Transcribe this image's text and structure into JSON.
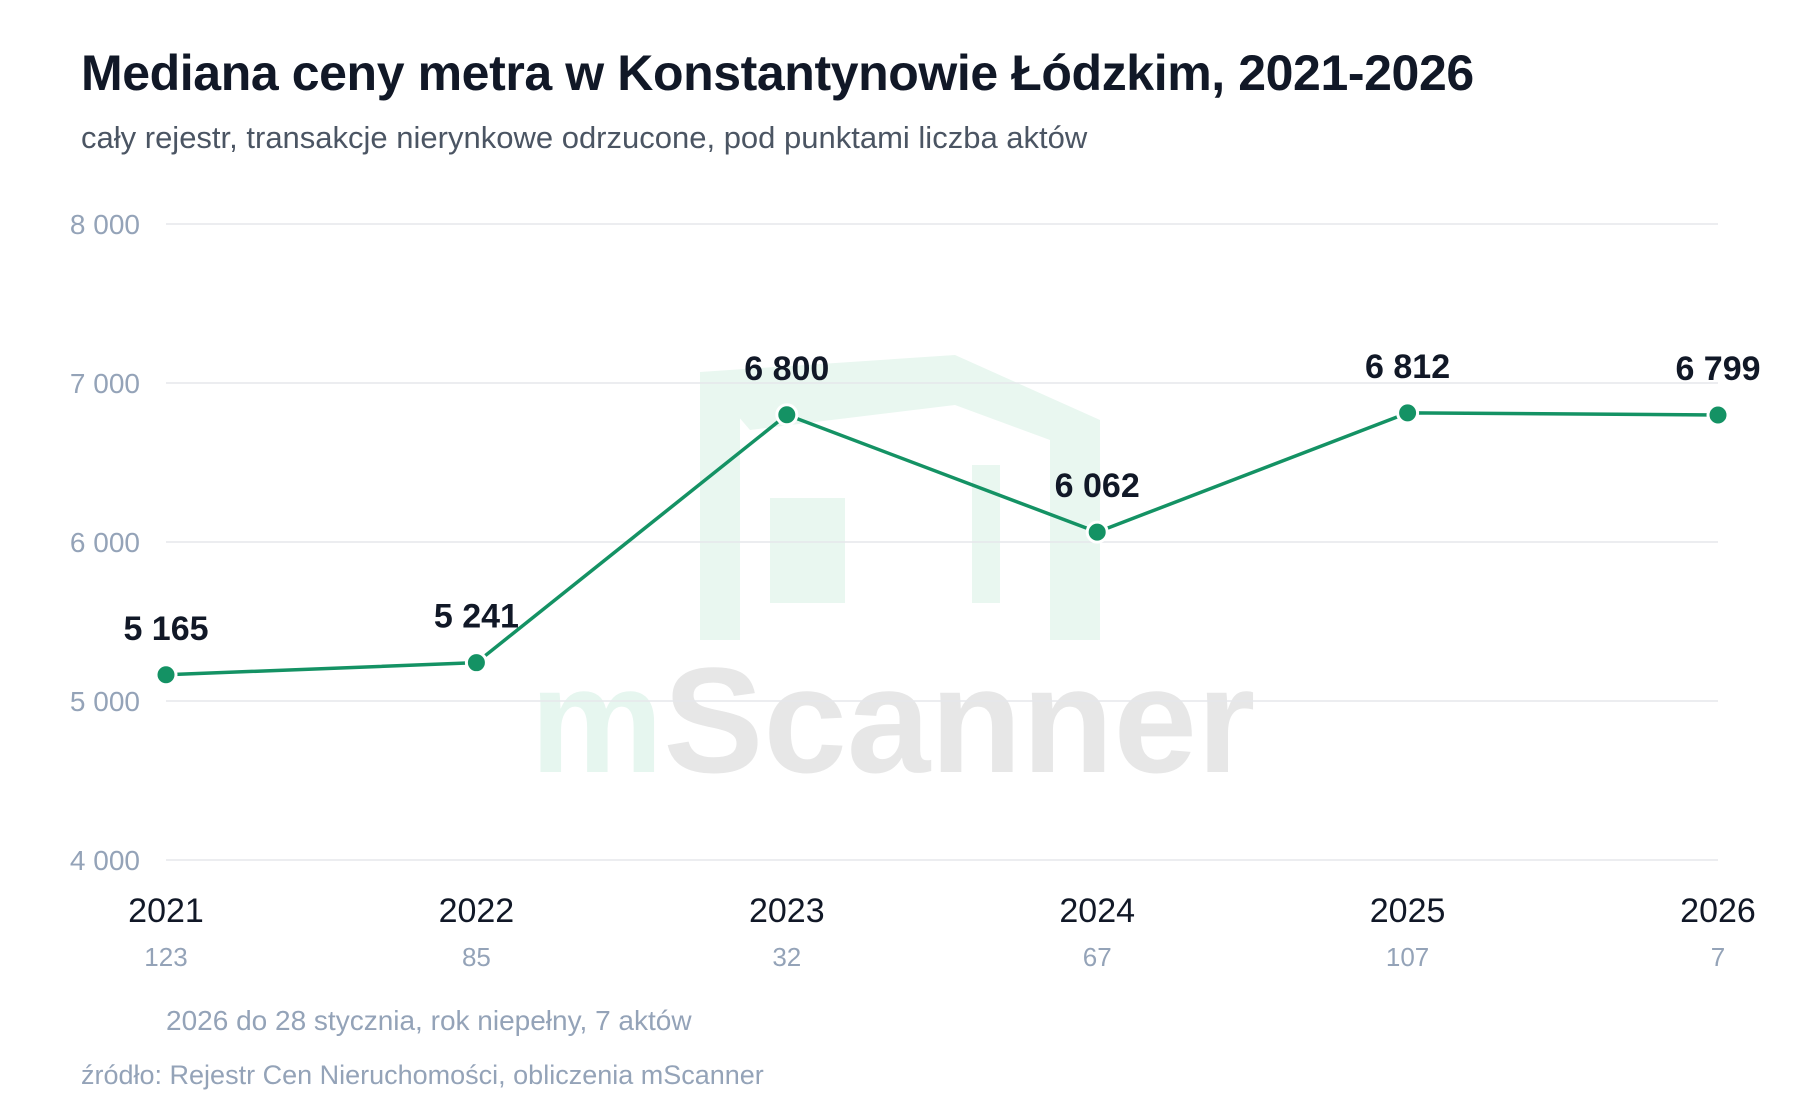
{
  "header": {
    "title": "Mediana ceny metra w Konstantynowie Łódzkim, 2021-2026",
    "subtitle": "cały rejestr, transakcje nierynkowe odrzucone, pod punktami liczba aktów"
  },
  "watermark": {
    "part1": "m",
    "part2": "Scanner"
  },
  "footer": {
    "note": "2026 do 28 stycznia, rok niepełny, 7 aktów",
    "source": "źródło: Rejestr Cen Nieruchomości, obliczenia mScanner"
  },
  "colors": {
    "line": "#149264",
    "grid": "#e5e7eb",
    "watermark_green": "#e6f6ef",
    "watermark_grey": "#e5e5e5"
  },
  "chart_data": {
    "type": "line",
    "categories": [
      "2021",
      "2022",
      "2023",
      "2024",
      "2025",
      "2026"
    ],
    "values": [
      5165,
      5241,
      6800,
      6062,
      6812,
      6799
    ],
    "value_labels": [
      "5 165",
      "5 241",
      "6 800",
      "6 062",
      "6 812",
      "6 799"
    ],
    "counts": [
      "123",
      "85",
      "32",
      "67",
      "107",
      "7"
    ],
    "yticks": [
      4000,
      5000,
      6000,
      7000,
      8000
    ],
    "ytick_labels": [
      "4 000",
      "5 000",
      "6 000",
      "7 000",
      "8 000"
    ],
    "ylim": [
      4000,
      8000
    ],
    "grid": true
  }
}
